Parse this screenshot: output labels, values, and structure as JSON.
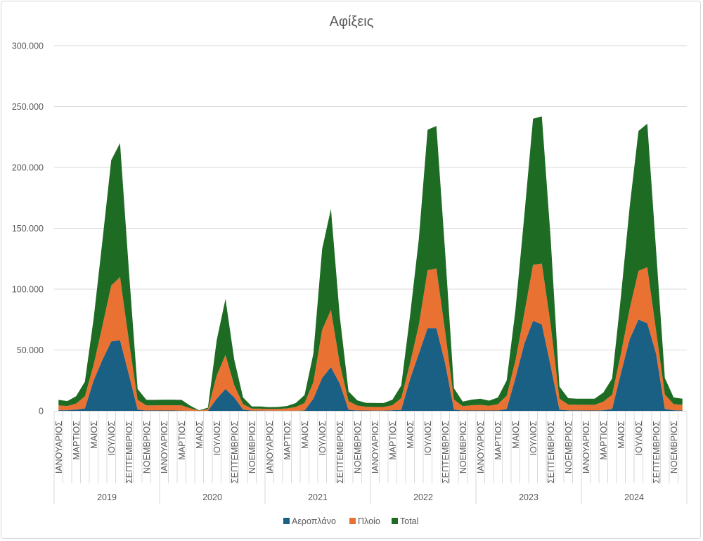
{
  "chart_data": {
    "type": "area",
    "stacked": true,
    "title": "Αφίξεις",
    "xlabel": "",
    "ylabel": "",
    "ylim": [
      0,
      300000
    ],
    "y_ticks": [
      0,
      50000,
      100000,
      150000,
      200000,
      250000,
      300000
    ],
    "y_tick_labels": [
      "0",
      "50.000",
      "100.000",
      "150.000",
      "200.000",
      "250.000",
      "300.000"
    ],
    "grid": true,
    "legend_position": "bottom",
    "years": [
      "2019",
      "2020",
      "2021",
      "2022",
      "2023",
      "2024"
    ],
    "months_per_year": 12,
    "month_tick_labels": [
      "ΙΑΝΟΥΑΡΙΟΣ",
      "ΜΑΡΤΙΟΣ",
      "ΜΑΙΟΣ",
      "ΙΟΥΛΙΟΣ",
      "ΣΕΠΤΕΜΒΡΙΟΣ",
      "ΝΟΕΜΒΡΙΟΣ"
    ],
    "series": [
      {
        "name": "Αεροπλάνο",
        "color": "#1a5f84",
        "values": [
          500,
          500,
          1000,
          2000,
          25000,
          42000,
          57000,
          58000,
          30000,
          1000,
          300,
          300,
          300,
          300,
          200,
          100,
          0,
          100,
          10000,
          18000,
          11000,
          1000,
          200,
          200,
          100,
          100,
          100,
          100,
          300,
          10000,
          27000,
          36000,
          22500,
          1000,
          300,
          300,
          200,
          200,
          500,
          800,
          26000,
          47000,
          68000,
          68000,
          39000,
          1000,
          300,
          300,
          300,
          300,
          300,
          1500,
          27000,
          55000,
          74000,
          71000,
          37000,
          1000,
          400,
          400,
          300,
          300,
          500,
          1500,
          31000,
          59000,
          75000,
          72000,
          47000,
          1500,
          500,
          300
        ]
      },
      {
        "name": "Πλοίο",
        "color": "#e97132",
        "values": [
          4000,
          3500,
          5000,
          10000,
          13000,
          28000,
          46000,
          52000,
          28000,
          8000,
          4200,
          4200,
          4300,
          4300,
          4300,
          2000,
          200,
          1200,
          19000,
          28000,
          10000,
          4500,
          1600,
          1600,
          1400,
          1500,
          1900,
          3100,
          6200,
          13500,
          39500,
          47000,
          16500,
          7000,
          4000,
          3000,
          3000,
          3000,
          4100,
          9600,
          13000,
          23500,
          47500,
          49000,
          26000,
          8300,
          3500,
          4300,
          4700,
          3900,
          5200,
          11000,
          14500,
          25000,
          46000,
          50000,
          34000,
          9000,
          4800,
          4600,
          4700,
          4700,
          7000,
          11800,
          16000,
          25000,
          40000,
          46000,
          19000,
          12000,
          5000,
          4700
        ]
      },
      {
        "name": "Total",
        "color": "#1e6b24",
        "values": [
          4500,
          4000,
          6000,
          12000,
          38000,
          70000,
          103000,
          110000,
          58000,
          9000,
          4500,
          4500,
          4600,
          4600,
          4500,
          2100,
          200,
          1300,
          29000,
          46000,
          21000,
          5500,
          1800,
          1800,
          1500,
          1600,
          2000,
          3200,
          6500,
          23500,
          66500,
          83000,
          39000,
          8000,
          4300,
          3300,
          3200,
          3200,
          4600,
          10400,
          39000,
          70500,
          115500,
          117000,
          65000,
          9300,
          3800,
          4600,
          5000,
          4200,
          5500,
          12500,
          41500,
          80000,
          120000,
          121000,
          71000,
          10000,
          5200,
          5000,
          5000,
          5000,
          7500,
          13300,
          47000,
          84000,
          115000,
          118000,
          66000,
          13500,
          5500,
          5000
        ]
      }
    ]
  }
}
